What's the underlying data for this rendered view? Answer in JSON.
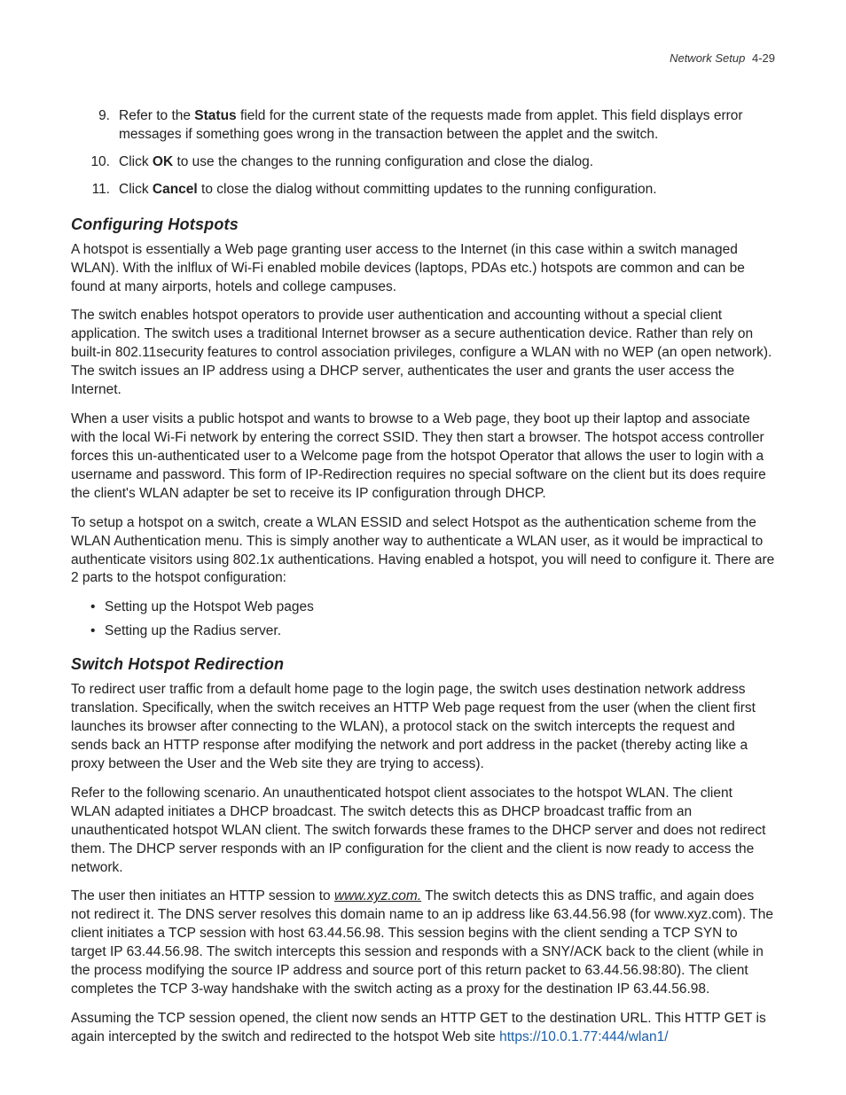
{
  "colors": {
    "text": "#222222",
    "link": "#1a5fa8",
    "background": "#ffffff"
  },
  "typography": {
    "body_font": "Helvetica Neue, Helvetica, Arial, sans-serif",
    "body_size_pt": 11.5,
    "body_is_condensed": true,
    "heading_style": "bold-italic",
    "heading_size_pt": 13.5
  },
  "header": {
    "section": "Network Setup",
    "page": "4-29"
  },
  "steps": [
    {
      "n": "9.",
      "pre": "Refer to the ",
      "bold": "Status",
      "post": " field for the current state of the requests made from applet. This field displays error messages if something goes wrong in the transaction between the applet and the switch."
    },
    {
      "n": "10.",
      "pre": "Click ",
      "bold": "OK",
      "post": " to use the changes to the running configuration and close the dialog."
    },
    {
      "n": "11.",
      "pre": "Click ",
      "bold": "Cancel",
      "post": " to close the dialog without committing updates to the running configuration."
    }
  ],
  "section1": {
    "title": "Configuring Hotspots",
    "paras": [
      "A hotspot is essentially a Web page granting user access to the Internet (in this case within a switch managed WLAN). With the inlflux of Wi-Fi enabled mobile devices (laptops, PDAs etc.) hotspots are common and can be found at many airports, hotels and college campuses.",
      "The switch enables hotspot operators to provide user authentication and accounting without a special client application. The switch uses a traditional Internet browser as a secure authentication device. Rather than rely on built-in 802.11security features to control association privileges, configure a WLAN with no WEP (an open network). The switch issues an IP address using a DHCP server, authenticates the user and grants the user access the Internet.",
      "When a user visits a public hotspot and wants to browse to a Web page, they boot up their laptop and associate with the local Wi-Fi network by entering the correct SSID. They then start a browser. The hotspot access controller forces this un-authenticated user to a Welcome page from the hotspot Operator that allows the user to login with a username and password. This form of IP-Redirection requires no special software on the client but its does require the client's WLAN adapter be set to receive its IP configuration through DHCP.",
      "To setup a hotspot on a switch, create a WLAN ESSID and select Hotspot as the authentication scheme from the WLAN Authentication menu. This is simply another way to authenticate a WLAN user, as it would be impractical to authenticate visitors using 802.1x authentications. Having enabled a hotspot, you will need to configure it. There are 2 parts to the hotspot configuration:"
    ],
    "bullets": [
      "Setting up the Hotspot Web pages",
      "Setting up the Radius server."
    ]
  },
  "section2": {
    "title": "Switch Hotspot Redirection",
    "paras": [
      "To redirect user traffic from a default home page to the login page, the switch uses destination network address translation. Specifically, when the switch receives an HTTP Web page request from the user (when the client first launches its browser after connecting to the WLAN), a protocol stack on the switch intercepts the request and sends back an HTTP response after modifying the network and port address in the packet (thereby acting like a proxy between the User and the Web site they are trying to access).",
      "Refer to the following scenario. An unauthenticated hotspot client associates to the hotspot WLAN. The client WLAN adapted initiates a DHCP broadcast. The switch detects this as DHCP broadcast traffic from an unauthenticated hotspot WLAN client. The switch forwards these frames to the DHCP server and does not redirect them. The DHCP server responds with an IP configuration for the client and the client is now ready to access the network."
    ],
    "para_mixed": {
      "t1": "The user then initiates an HTTP session to ",
      "link_u": "www.xyz.com.",
      "t2": " The switch detects this as DNS traffic, and again does not redirect it. The DNS server resolves this domain name to an ip address like 63.44.56.98 (for www.xyz.com). The client initiates a TCP session with host 63.44.56.98. This session begins with the client sending a TCP SYN to target IP 63.44.56.98. The switch intercepts this session and responds with a SNY/ACK back to the client (while in the process modifying the source IP address and source port of this return packet to 63.44.56.98:80). The client completes the TCP 3-way handshake with the switch acting as a proxy for the destination IP 63.44.56.98."
    },
    "para_last": {
      "t1": "Assuming the TCP session opened, the client now sends an HTTP GET to the destination URL. This HTTP GET is again intercepted by the switch and redirected to the hotspot Web site ",
      "link": "https://10.0.1.77:444/wlan1/"
    }
  }
}
